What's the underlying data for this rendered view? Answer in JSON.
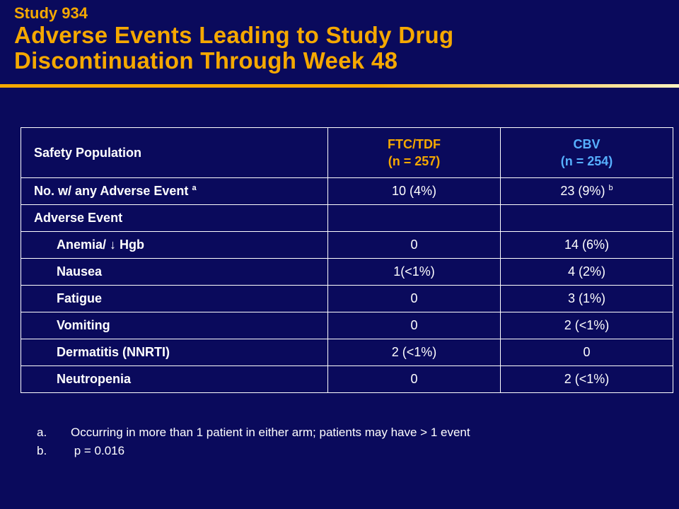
{
  "header": {
    "study_label": "Study 934",
    "title_line1": "Adverse Events Leading to Study Drug",
    "title_line2": "Discontinuation Through Week 48"
  },
  "colors": {
    "background": "#0a0a5c",
    "title": "#f5a800",
    "ftc_header": "#f5a800",
    "cbv_header": "#57b0ff",
    "table_text": "#ffffff"
  },
  "table": {
    "header": {
      "label": "Safety Population",
      "ftc_name": "FTC/TDF",
      "ftc_n": "(n = 257)",
      "cbv_name": "CBV",
      "cbv_n": "(n = 254)"
    },
    "any_event": {
      "label": "No. w/ any Adverse Event",
      "label_sup": "a",
      "ftc": "10 (4%)",
      "cbv": "23 (9%)",
      "cbv_sup": "b"
    },
    "section_label": "Adverse Event",
    "rows": [
      {
        "label": "Anemia/ ↓ Hgb",
        "ftc": "0",
        "cbv": "14 (6%)"
      },
      {
        "label": "Nausea",
        "ftc": "1(<1%)",
        "cbv": "4 (2%)"
      },
      {
        "label": "Fatigue",
        "ftc": "0",
        "cbv": "3 (1%)"
      },
      {
        "label": "Vomiting",
        "ftc": "0",
        "cbv": "2 (<1%)"
      },
      {
        "label": "Dermatitis (NNRTI)",
        "ftc": "2 (<1%)",
        "cbv": "0"
      },
      {
        "label": "Neutropenia",
        "ftc": "0",
        "cbv": "2 (<1%)"
      }
    ]
  },
  "footnotes": [
    {
      "marker": "a.",
      "text": "Occurring in more than 1 patient in either arm; patients may have > 1 event"
    },
    {
      "marker": "b.",
      "text": " p = 0.016"
    }
  ]
}
